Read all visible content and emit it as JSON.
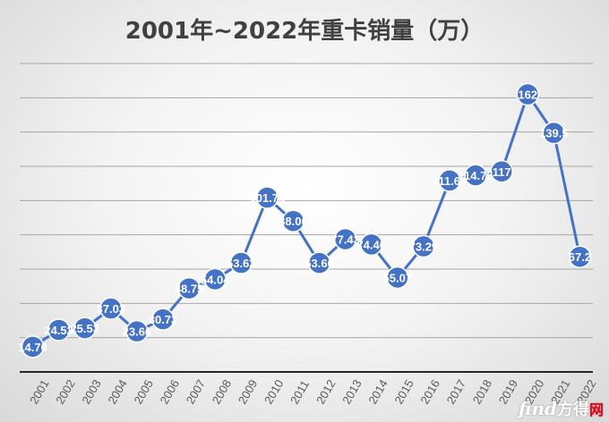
{
  "chart_data": {
    "type": "line",
    "title": "2001年~2022年重卡销量（万）",
    "xlabel": "",
    "ylabel": "",
    "categories": [
      "2001",
      "2002",
      "2003",
      "2004",
      "2005",
      "2006",
      "2007",
      "2008",
      "2009",
      "2010",
      "2011",
      "2012",
      "2013",
      "2014",
      "2015",
      "2016",
      "2017",
      "2018",
      "2019",
      "2020",
      "2021",
      "2022"
    ],
    "series": [
      {
        "values": [
          14.7,
          24.52,
          25.53,
          37.03,
          23.66,
          30.73,
          48.75,
          54.04,
          63.62,
          101.74,
          88.06,
          63.6,
          77.43,
          74.4,
          55.07,
          73.29,
          111.69,
          114.75,
          117,
          162,
          139.5,
          67.2
        ],
        "labels": [
          "14.70",
          "24.52",
          "25.53",
          "37.03",
          "23.66",
          "30.73",
          "48.75",
          "54.04",
          "63.62",
          "101.74",
          "88.06",
          "63.60",
          "77.43",
          "74.40",
          "55.07",
          "73.29",
          "111.69",
          "114.75",
          "117",
          "162",
          "139.5",
          "67.2"
        ]
      }
    ],
    "ylim": [
      0,
      180
    ],
    "grid": true,
    "colors": {
      "line": "#4472C4",
      "marker": "#4472C4",
      "grid": "#a6a6a6",
      "axis": "#262626"
    }
  },
  "watermark": {
    "brand_part1": "find",
    "brand_part2": "方得",
    "brand_part3": "网"
  }
}
